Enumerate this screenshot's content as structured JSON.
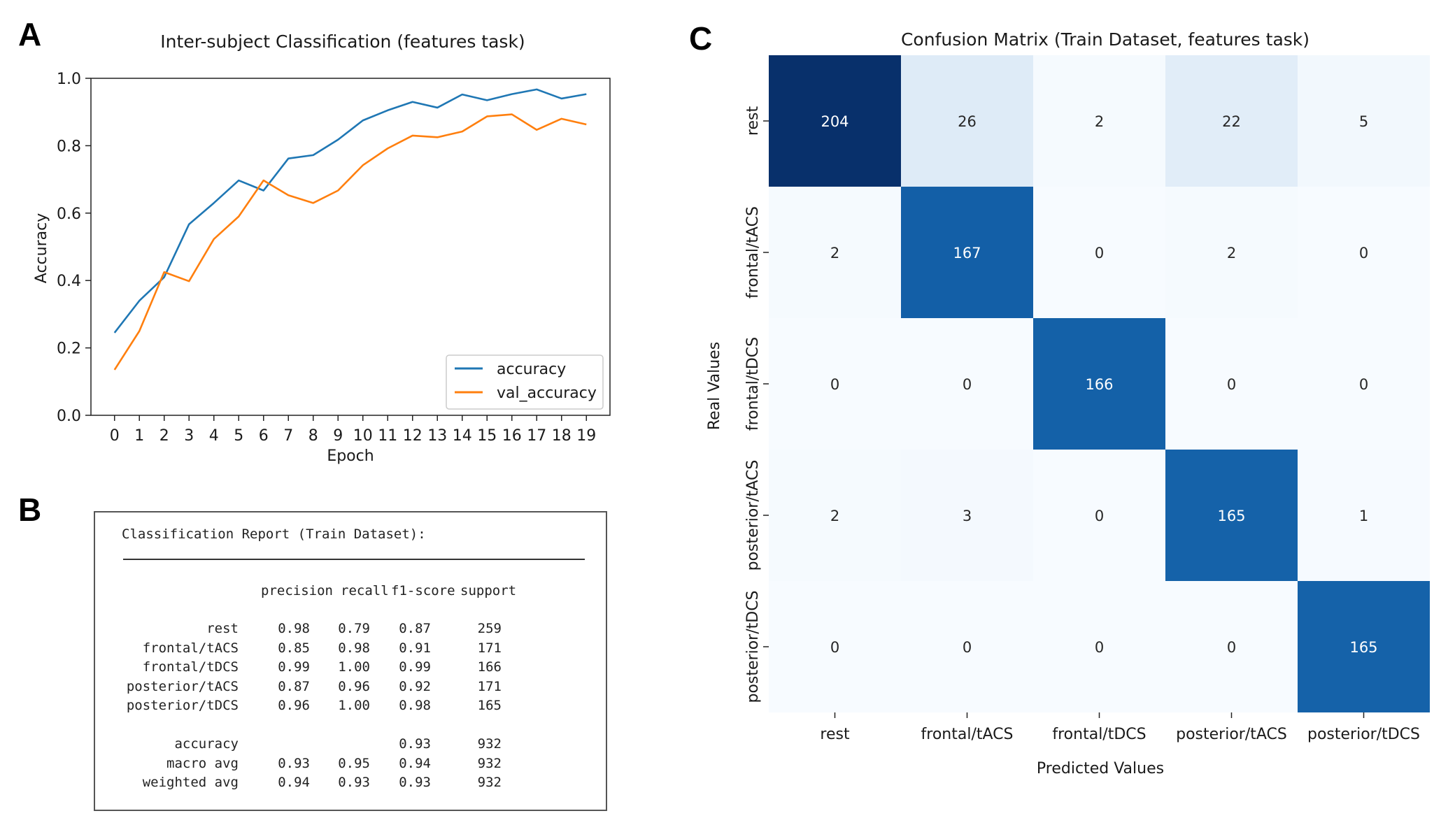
{
  "panels": {
    "a": "A",
    "b": "B",
    "c": "C"
  },
  "chart_data": [
    {
      "type": "line",
      "title": "Inter-subject Classification (features task)",
      "xlabel": "Epoch",
      "ylabel": "Accuracy",
      "x": [
        0,
        1,
        2,
        3,
        4,
        5,
        6,
        7,
        8,
        9,
        10,
        11,
        12,
        13,
        14,
        15,
        16,
        17,
        18,
        19
      ],
      "xlim": [
        -0.95,
        19.95
      ],
      "ylim": [
        0,
        1.0
      ],
      "yticks": [
        "0.0",
        "0.2",
        "0.4",
        "0.6",
        "0.8",
        "1.0"
      ],
      "legend_position": "lower-right",
      "series": [
        {
          "name": "accuracy",
          "color": "#1f77b4",
          "values": [
            0.245,
            0.34,
            0.41,
            0.567,
            0.63,
            0.697,
            0.667,
            0.762,
            0.772,
            0.818,
            0.875,
            0.905,
            0.93,
            0.913,
            0.952,
            0.935,
            0.953,
            0.967,
            0.94,
            0.953
          ]
        },
        {
          "name": "val_accuracy",
          "color": "#ff7f0e",
          "values": [
            0.135,
            0.25,
            0.425,
            0.398,
            0.523,
            0.59,
            0.697,
            0.653,
            0.63,
            0.667,
            0.742,
            0.792,
            0.83,
            0.825,
            0.842,
            0.887,
            0.893,
            0.847,
            0.88,
            0.863
          ]
        }
      ]
    },
    {
      "type": "heatmap",
      "title": "Confusion Matrix (Train Dataset, features task)",
      "xlabel": "Predicted Values",
      "ylabel": "Real Values",
      "x_categories": [
        "rest",
        "frontal/tACS",
        "frontal/tDCS",
        "posterior/tACS",
        "posterior/tDCS"
      ],
      "y_categories": [
        "rest",
        "frontal/tACS",
        "frontal/tDCS",
        "posterior/tACS",
        "posterior/tDCS"
      ],
      "values": [
        [
          204,
          26,
          2,
          22,
          5
        ],
        [
          2,
          167,
          0,
          2,
          0
        ],
        [
          0,
          0,
          166,
          0,
          0
        ],
        [
          2,
          3,
          0,
          165,
          1
        ],
        [
          0,
          0,
          0,
          0,
          165
        ]
      ],
      "colormap": "Blues"
    }
  ],
  "report": {
    "title": "Classification Report (Train Dataset):",
    "header": [
      "precision",
      "recall",
      "f1-score",
      "support"
    ],
    "rows": [
      [
        "rest",
        "0.98",
        "0.79",
        "0.87",
        "259"
      ],
      [
        "frontal/tACS",
        "0.85",
        "0.98",
        "0.91",
        "171"
      ],
      [
        "frontal/tDCS",
        "0.99",
        "1.00",
        "0.99",
        "166"
      ],
      [
        "posterior/tACS",
        "0.87",
        "0.96",
        "0.92",
        "171"
      ],
      [
        "posterior/tDCS",
        "0.96",
        "1.00",
        "0.98",
        "165"
      ]
    ],
    "summary": [
      [
        "accuracy",
        "",
        "",
        "0.93",
        "932"
      ],
      [
        "macro avg",
        "0.93",
        "0.95",
        "0.94",
        "932"
      ],
      [
        "weighted avg",
        "0.94",
        "0.93",
        "0.93",
        "932"
      ]
    ]
  }
}
